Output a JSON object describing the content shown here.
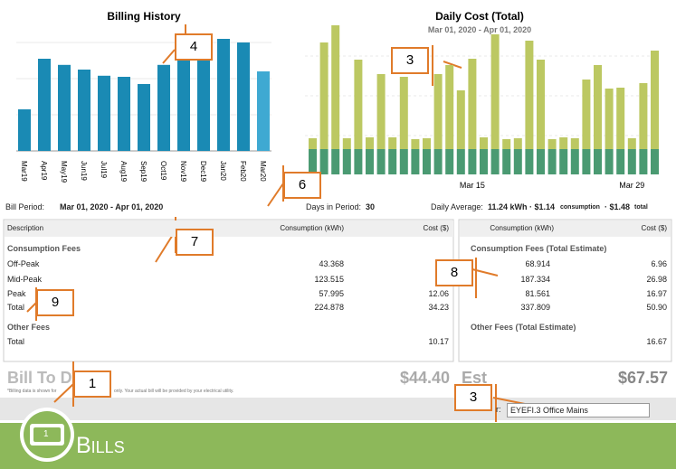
{
  "billing_history": {
    "type": "bar",
    "title": "Billing History",
    "categories": [
      "Mar19",
      "Apr19",
      "May19",
      "Jun19",
      "Jul19",
      "Aug19",
      "Sep19",
      "Oct19",
      "Nov19",
      "Dec19",
      "Jan20",
      "Feb20",
      "Mar20"
    ],
    "values": [
      1.15,
      2.55,
      2.38,
      2.25,
      2.08,
      2.05,
      1.85,
      2.38,
      2.55,
      2.68,
      3.1,
      3.0,
      2.2
    ],
    "ylim": [
      0,
      3.2
    ],
    "color": "#1a8ab4",
    "last_color": "#3fa9d2"
  },
  "daily_cost": {
    "type": "stacked-bar",
    "title": "Daily Cost (Total)",
    "subtitle": "Mar 01, 2020 - Apr 01, 2020",
    "categories": [
      null,
      null,
      null,
      null,
      null,
      null,
      null,
      null,
      null,
      null,
      null,
      null,
      null,
      null,
      "Mar 15",
      null,
      null,
      null,
      null,
      null,
      null,
      null,
      null,
      null,
      null,
      null,
      null,
      null,
      "Mar 29",
      null,
      null
    ],
    "ylim": [
      0,
      165
    ],
    "series": [
      {
        "color": "#4a9a72",
        "values": [
          28,
          28,
          28,
          28,
          28,
          28,
          28,
          28,
          28,
          28,
          28,
          28,
          28,
          28,
          28,
          28,
          28,
          28,
          28,
          28,
          28,
          28,
          28,
          28,
          28,
          28,
          28,
          28,
          28,
          28,
          28
        ]
      },
      {
        "color": "#bcc862",
        "values": [
          12,
          118,
          137,
          12,
          99,
          13,
          83,
          13,
          80,
          11,
          12,
          83,
          93,
          65,
          100,
          13,
          127,
          11,
          12,
          120,
          99,
          11,
          13,
          12,
          77,
          93,
          67,
          68,
          12,
          73,
          109
        ]
      }
    ]
  },
  "period": {
    "bill_label": "Bill Period:",
    "bill_value": "Mar 01, 2020 - Apr 01, 2020",
    "days_label": "Days in Period:",
    "days": "30",
    "avg_label": "Daily Average:",
    "avg_value": "11.24 kWh · $1.14",
    "avg_consumption": "consumption",
    "avg_total": "· $1.48",
    "avg_total_label": "total"
  },
  "left_table": {
    "headers": [
      "Description",
      "Consumption (kWh)",
      "Cost ($)"
    ],
    "section1": "Consumption Fees",
    "rows": [
      [
        "Off-Peak",
        "43.368",
        null
      ],
      [
        "Mid-Peak",
        "123.515",
        null
      ],
      [
        "Peak",
        "57.995",
        "12.06"
      ],
      [
        "Total",
        "224.878",
        "34.23"
      ]
    ],
    "section2": "Other Fees",
    "total_row": [
      "Total",
      "10.17"
    ]
  },
  "right_table": {
    "headers": [
      "Consumption (kWh)",
      "Cost ($)"
    ],
    "section1": "Consumption Fees (Total Estimate)",
    "rows": [
      [
        "68.914",
        "6.96"
      ],
      [
        "187.334",
        "26.98"
      ],
      [
        "81.561",
        "16.97"
      ],
      [
        "337.809",
        "50.90"
      ]
    ],
    "section2": "Other Fees (Total Estimate)",
    "total": "16.67"
  },
  "summary": {
    "bill_to": "Bill To D",
    "bill_amount": "$44.40",
    "est": "Est",
    "est_amount": "$67.57",
    "note_a": "*Billing data is shown for",
    "note_b": "only. Your actual bill will be provided by your electrical utility.",
    "device_label": "r:",
    "device": "EYEFI.3 Office Mains"
  },
  "footer": {
    "title": "Bills",
    "icon": "1"
  },
  "annotations": [
    "4",
    "3",
    "6",
    "7",
    "8",
    "9",
    "1",
    "3"
  ]
}
